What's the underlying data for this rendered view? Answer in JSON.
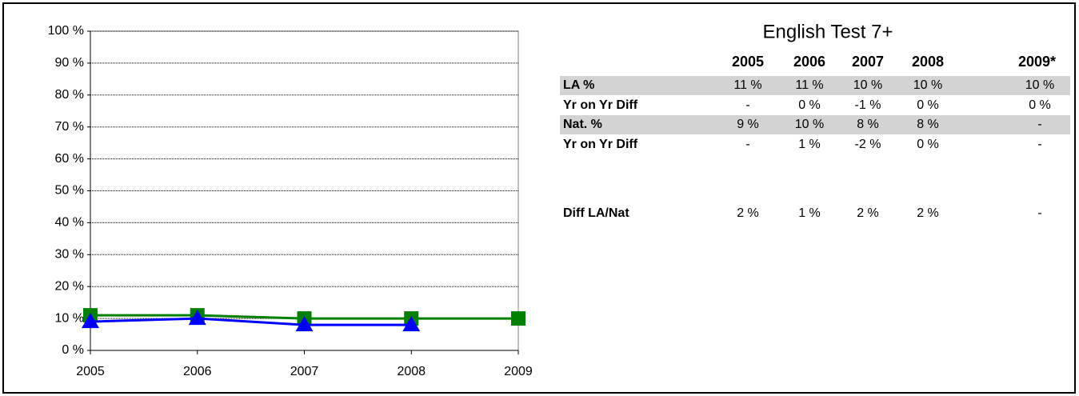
{
  "chart_data": {
    "type": "line",
    "categories": [
      "2005",
      "2006",
      "2007",
      "2008",
      "2009"
    ],
    "series": [
      {
        "color": "#008000",
        "marker": "square",
        "values": [
          11,
          11,
          10,
          10,
          10
        ]
      },
      {
        "color": "#0000ff",
        "marker": "triangle",
        "values": [
          9,
          10,
          8,
          8,
          null
        ]
      }
    ],
    "ylim": [
      0,
      100
    ],
    "yticks": [
      {
        "value": 0,
        "label": "0 %"
      },
      {
        "value": 10,
        "label": "10 %"
      },
      {
        "value": 20,
        "label": "20 %"
      },
      {
        "value": 30,
        "label": "30 %"
      },
      {
        "value": 40,
        "label": "40 %"
      },
      {
        "value": 50,
        "label": "50 %"
      },
      {
        "value": 60,
        "label": "60 %"
      },
      {
        "value": 70,
        "label": "70 %"
      },
      {
        "value": 80,
        "label": "80 %"
      },
      {
        "value": 90,
        "label": "90 %"
      },
      {
        "value": 100,
        "label": "100 %"
      }
    ],
    "grid": true
  },
  "table": {
    "title": "English Test 7+",
    "columns": [
      "2005",
      "2006",
      "2007",
      "2008",
      "2009*"
    ],
    "rows": [
      {
        "label": "LA %",
        "shaded": true,
        "cells": [
          "11 %",
          "11 %",
          "10 %",
          "10 %",
          "10 %"
        ]
      },
      {
        "label": "Yr on Yr Diff",
        "shaded": false,
        "cells": [
          "-",
          "0 %",
          "-1 %",
          "0 %",
          "0 %"
        ]
      },
      {
        "label": "Nat. %",
        "shaded": true,
        "cells": [
          "9 %",
          "10 %",
          "8 %",
          "8 %",
          "-"
        ]
      },
      {
        "label": "Yr on Yr Diff",
        "shaded": false,
        "cells": [
          "-",
          "1 %",
          "-2 %",
          "0 %",
          "-"
        ]
      },
      {
        "label": "Diff LA/Nat",
        "shaded": false,
        "cells": [
          "2 %",
          "1 %",
          "2 %",
          "2 %",
          "-"
        ]
      }
    ]
  }
}
